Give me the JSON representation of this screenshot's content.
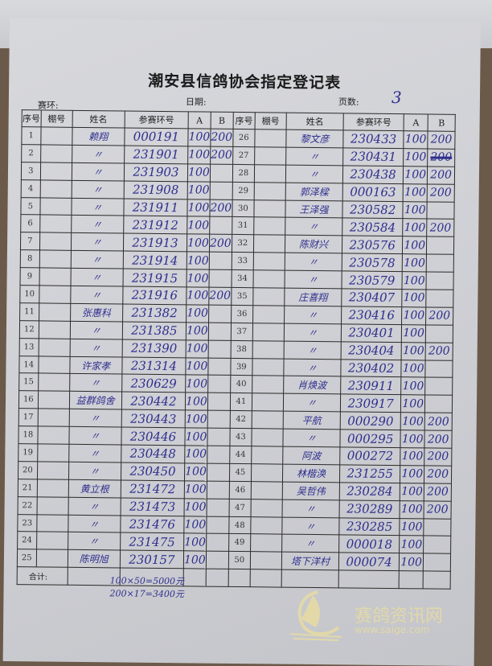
{
  "form": {
    "title": "潮安县信鸽协会指定登记表",
    "race_label": "赛环:",
    "date_label": "日期:",
    "page_label": "页数:",
    "page_value": "3",
    "headers": [
      "序号",
      "棚号",
      "姓名",
      "参赛环号",
      "A",
      "B",
      "序号",
      "棚号",
      "姓名",
      "参赛环号",
      "A",
      "B"
    ],
    "total_label": "合计:"
  },
  "rows_left": [
    {
      "seq": "1",
      "name": "赖翔",
      "ring": "000191",
      "a": "100",
      "b": "200"
    },
    {
      "seq": "2",
      "name": "〃",
      "ring": "231901",
      "a": "100",
      "b": "200"
    },
    {
      "seq": "3",
      "name": "〃",
      "ring": "231903",
      "a": "100",
      "b": ""
    },
    {
      "seq": "4",
      "name": "〃",
      "ring": "231908",
      "a": "100",
      "b": ""
    },
    {
      "seq": "5",
      "name": "〃",
      "ring": "231911",
      "a": "100",
      "b": "200"
    },
    {
      "seq": "6",
      "name": "〃",
      "ring": "231912",
      "a": "100",
      "b": ""
    },
    {
      "seq": "7",
      "name": "〃",
      "ring": "231913",
      "a": "100",
      "b": "200"
    },
    {
      "seq": "8",
      "name": "〃",
      "ring": "231914",
      "a": "100",
      "b": ""
    },
    {
      "seq": "9",
      "name": "〃",
      "ring": "231915",
      "a": "100",
      "b": ""
    },
    {
      "seq": "10",
      "name": "〃",
      "ring": "231916",
      "a": "100",
      "b": "200"
    },
    {
      "seq": "11",
      "name": "张惠科",
      "ring": "231382",
      "a": "100",
      "b": ""
    },
    {
      "seq": "12",
      "name": "〃",
      "ring": "231385",
      "a": "100",
      "b": ""
    },
    {
      "seq": "13",
      "name": "〃",
      "ring": "231390",
      "a": "100",
      "b": ""
    },
    {
      "seq": "14",
      "name": "许家孝",
      "ring": "231314",
      "a": "100",
      "b": ""
    },
    {
      "seq": "15",
      "name": "〃",
      "ring": "230629",
      "a": "100",
      "b": ""
    },
    {
      "seq": "16",
      "name": "益群鸽舍",
      "ring": "230442",
      "a": "100",
      "b": ""
    },
    {
      "seq": "17",
      "name": "〃",
      "ring": "230443",
      "a": "100",
      "b": ""
    },
    {
      "seq": "18",
      "name": "〃",
      "ring": "230446",
      "a": "100",
      "b": ""
    },
    {
      "seq": "19",
      "name": "〃",
      "ring": "230448",
      "a": "100",
      "b": ""
    },
    {
      "seq": "20",
      "name": "〃",
      "ring": "230450",
      "a": "100",
      "b": ""
    },
    {
      "seq": "21",
      "name": "黄立根",
      "ring": "231472",
      "a": "100",
      "b": ""
    },
    {
      "seq": "22",
      "name": "〃",
      "ring": "231473",
      "a": "100",
      "b": ""
    },
    {
      "seq": "23",
      "name": "〃",
      "ring": "231476",
      "a": "100",
      "b": ""
    },
    {
      "seq": "24",
      "name": "〃",
      "ring": "231475",
      "a": "100",
      "b": ""
    },
    {
      "seq": "25",
      "name": "陈明旭",
      "ring": "230157",
      "a": "100",
      "b": ""
    }
  ],
  "rows_right": [
    {
      "seq": "26",
      "name": "黎文彦",
      "ring": "230433",
      "a": "100",
      "b": "200"
    },
    {
      "seq": "27",
      "name": "〃",
      "ring": "230431",
      "a": "100",
      "b": "200",
      "b_struck": true
    },
    {
      "seq": "28",
      "name": "〃",
      "ring": "230438",
      "a": "100",
      "b": "200"
    },
    {
      "seq": "29",
      "name": "郭泽樑",
      "ring": "000163",
      "a": "100",
      "b": "200"
    },
    {
      "seq": "30",
      "name": "王泽强",
      "ring": "230582",
      "a": "100",
      "b": ""
    },
    {
      "seq": "31",
      "name": "〃",
      "ring": "230584",
      "a": "100",
      "b": "200"
    },
    {
      "seq": "32",
      "name": "陈财兴",
      "ring": "230576",
      "a": "100",
      "b": ""
    },
    {
      "seq": "33",
      "name": "〃",
      "ring": "230578",
      "a": "100",
      "b": ""
    },
    {
      "seq": "34",
      "name": "〃",
      "ring": "230579",
      "a": "100",
      "b": ""
    },
    {
      "seq": "35",
      "name": "庄喜翔",
      "ring": "230407",
      "a": "100",
      "b": ""
    },
    {
      "seq": "36",
      "name": "〃",
      "ring": "230416",
      "a": "100",
      "b": "200"
    },
    {
      "seq": "37",
      "name": "〃",
      "ring": "230401",
      "a": "100",
      "b": ""
    },
    {
      "seq": "38",
      "name": "〃",
      "ring": "230404",
      "a": "100",
      "b": "200"
    },
    {
      "seq": "39",
      "name": "〃",
      "ring": "230402",
      "a": "100",
      "b": ""
    },
    {
      "seq": "40",
      "name": "肖焕波",
      "ring": "230911",
      "a": "100",
      "b": ""
    },
    {
      "seq": "41",
      "name": "〃",
      "ring": "230917",
      "a": "100",
      "b": ""
    },
    {
      "seq": "42",
      "name": "平航",
      "ring": "000290",
      "a": "100",
      "b": "200"
    },
    {
      "seq": "43",
      "name": "〃",
      "ring": "000295",
      "a": "100",
      "b": "200"
    },
    {
      "seq": "44",
      "name": "阿波",
      "ring": "000272",
      "a": "100",
      "b": "200"
    },
    {
      "seq": "45",
      "name": "林楷涣",
      "ring": "231255",
      "a": "100",
      "b": "200"
    },
    {
      "seq": "46",
      "name": "吴哲伟",
      "ring": "230284",
      "a": "100",
      "b": "200"
    },
    {
      "seq": "47",
      "name": "〃",
      "ring": "230289",
      "a": "100",
      "b": "200"
    },
    {
      "seq": "48",
      "name": "〃",
      "ring": "230285",
      "a": "100",
      "b": ""
    },
    {
      "seq": "49",
      "name": "〃",
      "ring": "000018",
      "a": "100",
      "b": ""
    },
    {
      "seq": "50",
      "name": "塔下洋村",
      "ring": "000074",
      "a": "100",
      "b": ""
    }
  ],
  "calculations": [
    "100×50=5000元",
    "200×17=3400元"
  ],
  "watermark": {
    "text": "赛鸽资讯网",
    "url": "www.saige.com",
    "color": "#e2d8a8"
  },
  "ink_color": "#2f2f8e"
}
